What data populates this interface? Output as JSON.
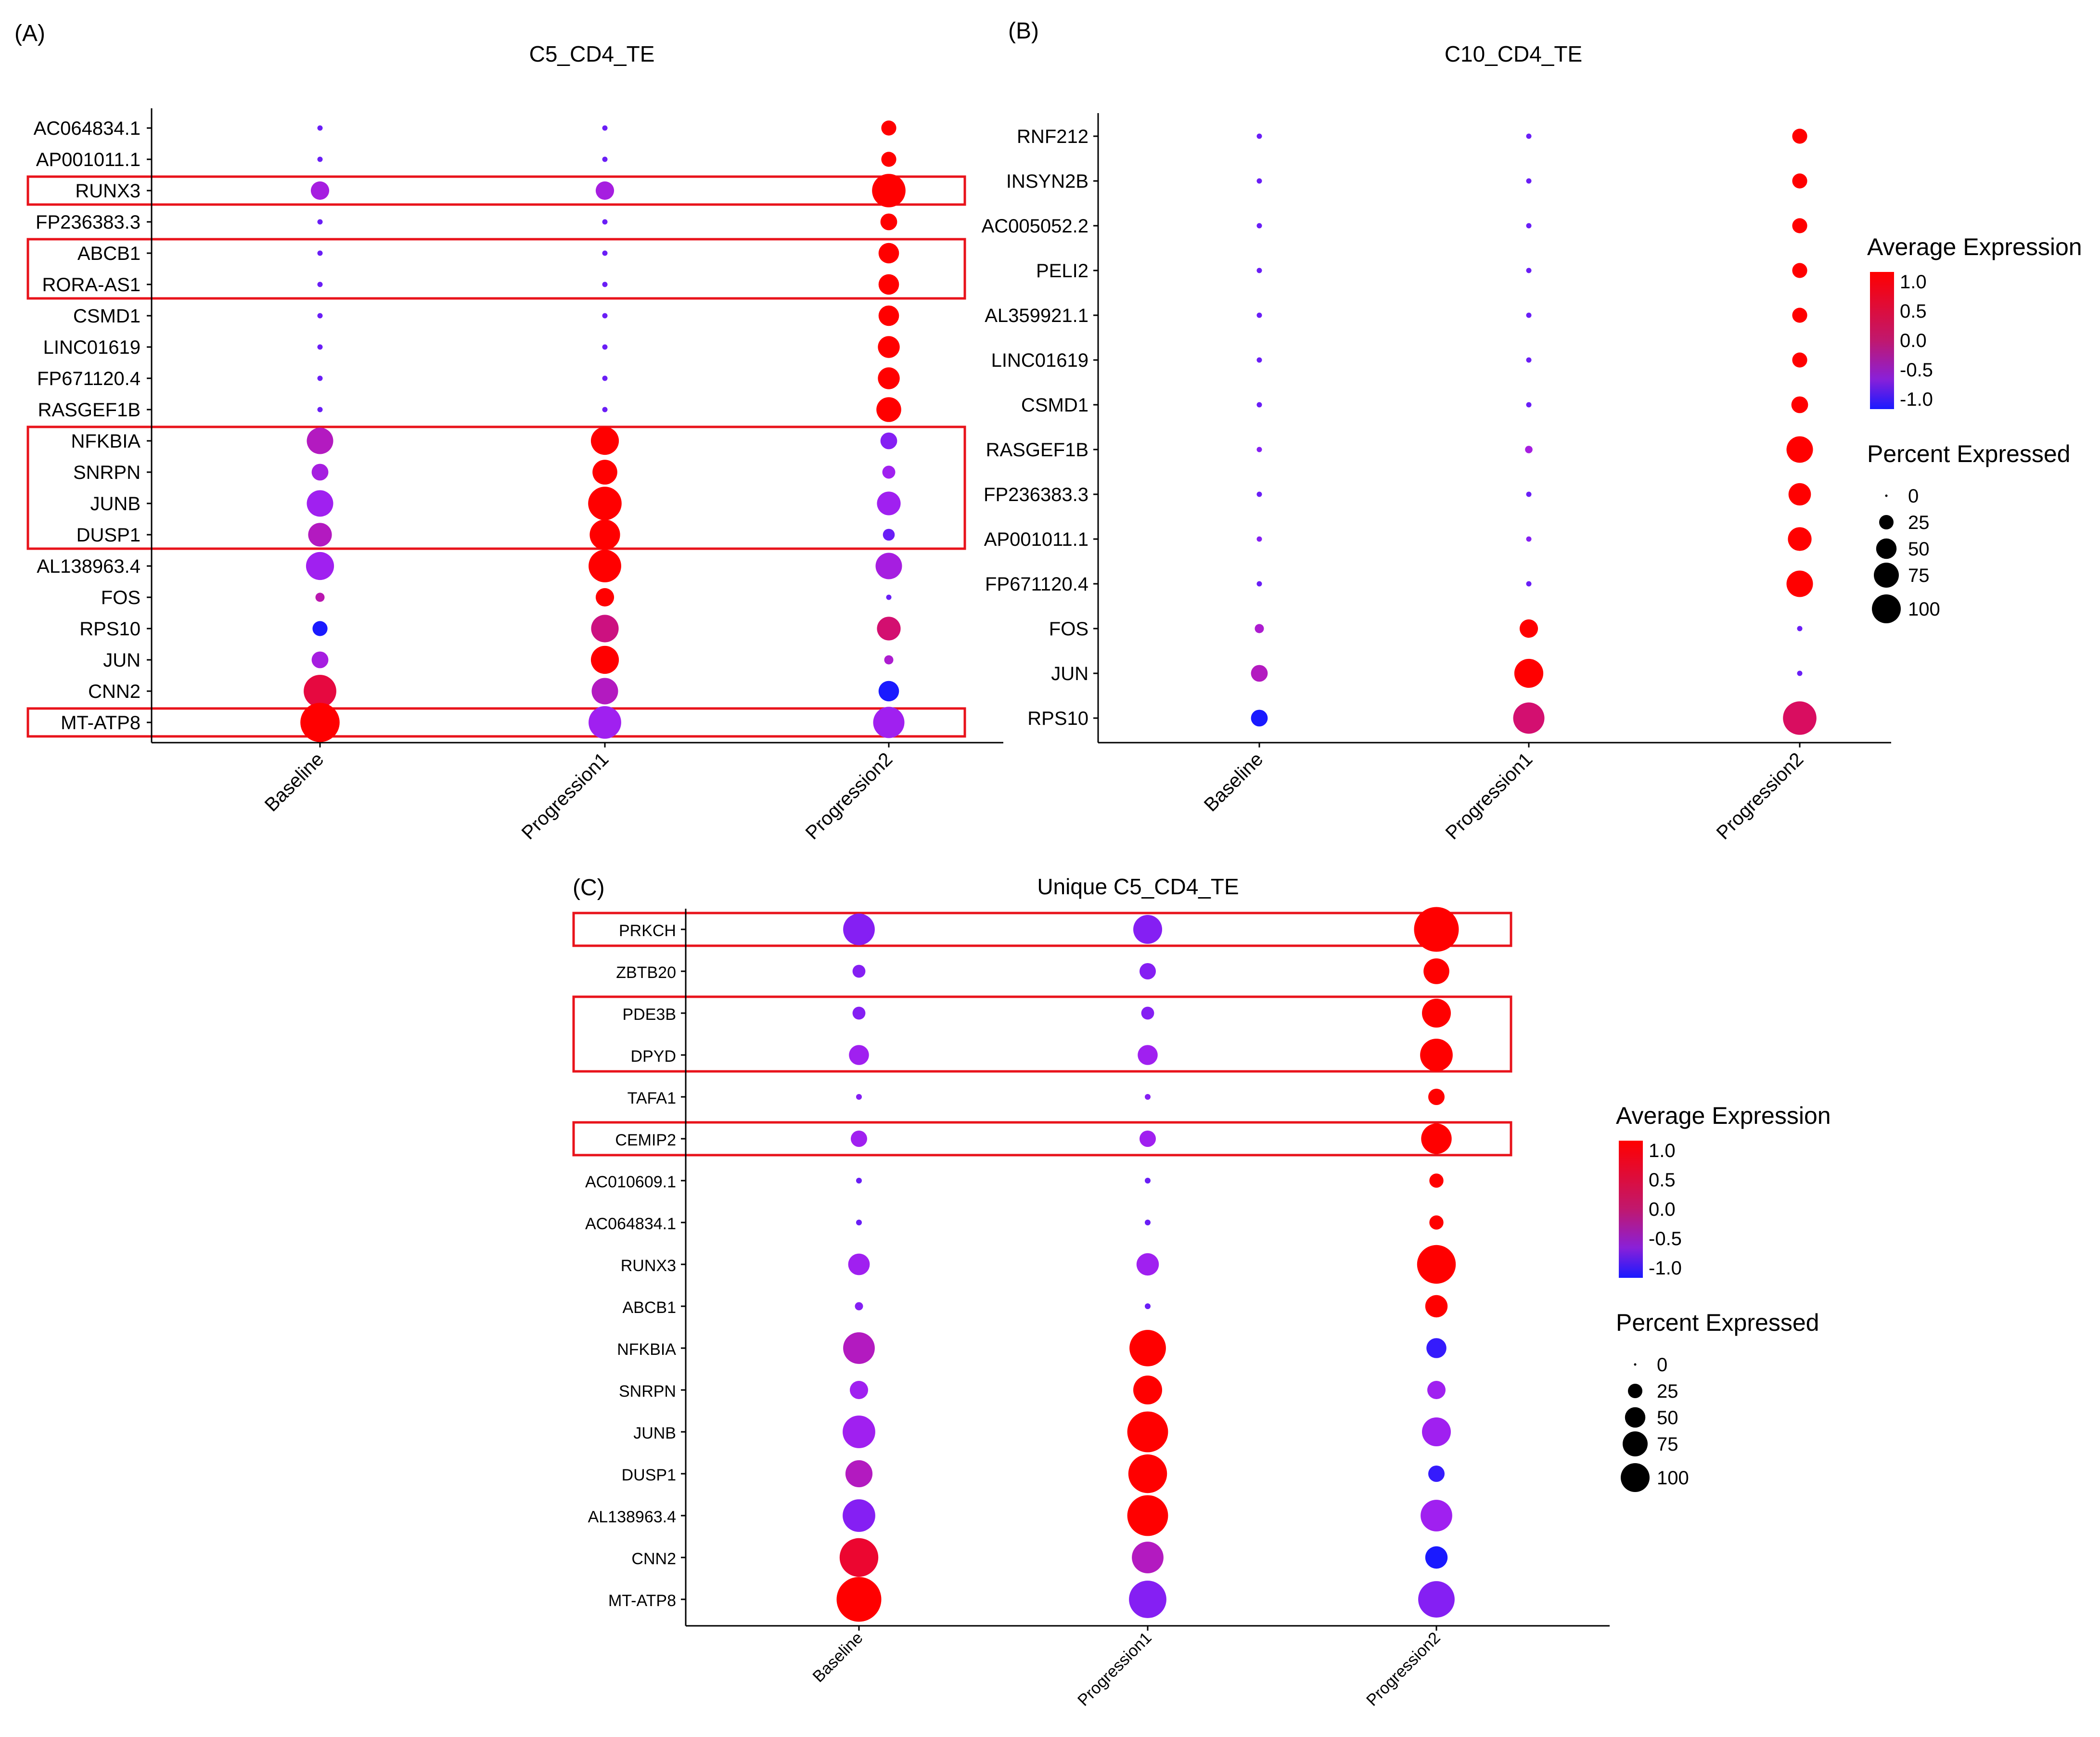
{
  "figure": {
    "colors": {
      "low": "#1a1aff",
      "mid": "#a020f0",
      "high": "#ff0000",
      "axis": "#000000",
      "highlight_box": "#e8131b"
    }
  },
  "chart_data": [
    {
      "panel": "(A)",
      "type": "dotplot",
      "title": "C5_CD4_TE",
      "categories": [
        "Baseline",
        "Progression1",
        "Progression2"
      ],
      "genes": [
        "AC064834.1",
        "AP001011.1",
        "RUNX3",
        "FP236383.3",
        "ABCB1",
        "RORA-AS1",
        "CSMD1",
        "LINC01619",
        "FP671120.4",
        "RASGEF1B",
        "NFKBIA",
        "SNRPN",
        "JUNB",
        "DUSP1",
        "AL138963.4",
        "FOS",
        "RPS10",
        "JUN",
        "CNN2",
        "MT-ATP8"
      ],
      "avg_expression": [
        [
          -0.7,
          -0.7,
          1.1
        ],
        [
          -0.7,
          -0.7,
          1.1
        ],
        [
          -0.4,
          -0.4,
          1.1
        ],
        [
          -0.7,
          -0.7,
          1.1
        ],
        [
          -0.7,
          -0.7,
          1.1
        ],
        [
          -0.7,
          -0.7,
          1.1
        ],
        [
          -0.7,
          -0.7,
          1.1
        ],
        [
          -0.7,
          -0.7,
          1.1
        ],
        [
          -0.7,
          -0.7,
          1.1
        ],
        [
          -0.7,
          -0.7,
          1.1
        ],
        [
          -0.2,
          1.0,
          -0.6
        ],
        [
          -0.4,
          1.0,
          -0.5
        ],
        [
          -0.5,
          1.0,
          -0.5
        ],
        [
          -0.2,
          1.0,
          -0.7
        ],
        [
          -0.5,
          1.0,
          -0.4
        ],
        [
          -0.1,
          1.0,
          -0.7
        ],
        [
          -1.1,
          0.2,
          0.3
        ],
        [
          -0.4,
          1.0,
          -0.3
        ],
        [
          0.6,
          -0.2,
          -1.0
        ],
        [
          1.1,
          -0.5,
          -0.5
        ]
      ],
      "pct_expressed": [
        [
          1,
          1,
          8
        ],
        [
          1,
          1,
          8
        ],
        [
          12,
          12,
          40
        ],
        [
          1,
          1,
          10
        ],
        [
          1,
          1,
          15
        ],
        [
          1,
          1,
          15
        ],
        [
          1,
          1,
          15
        ],
        [
          1,
          1,
          17
        ],
        [
          1,
          1,
          17
        ],
        [
          1,
          1,
          22
        ],
        [
          25,
          28,
          10
        ],
        [
          10,
          22,
          6
        ],
        [
          25,
          40,
          20
        ],
        [
          20,
          33,
          5
        ],
        [
          28,
          38,
          25
        ],
        [
          3,
          12,
          1
        ],
        [
          8,
          27,
          20
        ],
        [
          10,
          28,
          3
        ],
        [
          38,
          25,
          15
        ],
        [
          55,
          38,
          35
        ]
      ],
      "highlighted_genes": [
        [
          "RUNX3"
        ],
        [
          "ABCB1",
          "RORA-AS1"
        ],
        [
          "NFKBIA",
          "SNRPN",
          "JUNB",
          "DUSP1"
        ],
        [
          "MT-ATP8"
        ]
      ]
    },
    {
      "panel": "(B)",
      "type": "dotplot",
      "title": "C10_CD4_TE",
      "categories": [
        "Baseline",
        "Progression1",
        "Progression2"
      ],
      "genes": [
        "RNF212",
        "INSYN2B",
        "AC005052.2",
        "PELI2",
        "AL359921.1",
        "LINC01619",
        "CSMD1",
        "RASGEF1B",
        "FP236383.3",
        "AP001011.1",
        "FP671120.4",
        "FOS",
        "JUN",
        "RPS10"
      ],
      "avg_expression": [
        [
          -0.7,
          -0.7,
          1.1
        ],
        [
          -0.7,
          -0.7,
          1.1
        ],
        [
          -0.7,
          -0.7,
          1.1
        ],
        [
          -0.7,
          -0.7,
          1.1
        ],
        [
          -0.7,
          -0.7,
          1.1
        ],
        [
          -0.7,
          -0.7,
          1.1
        ],
        [
          -0.7,
          -0.7,
          1.1
        ],
        [
          -0.6,
          -0.4,
          1.1
        ],
        [
          -0.7,
          -0.7,
          1.1
        ],
        [
          -0.6,
          -0.6,
          1.1
        ],
        [
          -0.7,
          -0.7,
          1.1
        ],
        [
          -0.3,
          1.1,
          -0.7
        ],
        [
          -0.2,
          1.1,
          -0.7
        ],
        [
          -1.1,
          0.3,
          0.4
        ]
      ],
      "pct_expressed": [
        [
          1,
          1,
          8
        ],
        [
          1,
          1,
          8
        ],
        [
          1,
          1,
          8
        ],
        [
          1,
          1,
          8
        ],
        [
          1,
          1,
          8
        ],
        [
          1,
          1,
          8
        ],
        [
          1,
          1,
          10
        ],
        [
          1,
          2,
          25
        ],
        [
          1,
          1,
          18
        ],
        [
          1,
          1,
          20
        ],
        [
          1,
          1,
          25
        ],
        [
          3,
          12,
          1
        ],
        [
          10,
          30,
          1
        ],
        [
          10,
          35,
          40
        ]
      ]
    },
    {
      "panel": "(C)",
      "type": "dotplot",
      "title": "Unique C5_CD4_TE",
      "categories": [
        "Baseline",
        "Progression1",
        "Progression2"
      ],
      "genes": [
        "PRKCH",
        "ZBTB20",
        "PDE3B",
        "DPYD",
        "TAFA1",
        "CEMIP2",
        "AC010609.1",
        "AC064834.1",
        "RUNX3",
        "ABCB1",
        "NFKBIA",
        "SNRPN",
        "JUNB",
        "DUSP1",
        "AL138963.4",
        "CNN2",
        "MT-ATP8"
      ],
      "avg_expression": [
        [
          -0.6,
          -0.6,
          1.1
        ],
        [
          -0.6,
          -0.6,
          1.1
        ],
        [
          -0.6,
          -0.6,
          1.1
        ],
        [
          -0.5,
          -0.5,
          1.1
        ],
        [
          -0.6,
          -0.6,
          1.1
        ],
        [
          -0.5,
          -0.5,
          1.1
        ],
        [
          -0.7,
          -0.7,
          1.1
        ],
        [
          -0.7,
          -0.7,
          1.1
        ],
        [
          -0.5,
          -0.5,
          1.1
        ],
        [
          -0.6,
          -0.7,
          1.1
        ],
        [
          -0.2,
          1.0,
          -0.9
        ],
        [
          -0.5,
          1.0,
          -0.5
        ],
        [
          -0.5,
          1.0,
          -0.5
        ],
        [
          -0.2,
          1.0,
          -0.9
        ],
        [
          -0.6,
          1.0,
          -0.5
        ],
        [
          0.7,
          -0.2,
          -1.1
        ],
        [
          1.1,
          -0.6,
          -0.6
        ]
      ],
      "pct_expressed": [
        [
          30,
          25,
          60
        ],
        [
          5,
          8,
          20
        ],
        [
          5,
          5,
          25
        ],
        [
          12,
          12,
          32
        ],
        [
          1,
          1,
          8
        ],
        [
          8,
          8,
          28
        ],
        [
          1,
          1,
          6
        ],
        [
          1,
          1,
          6
        ],
        [
          14,
          15,
          45
        ],
        [
          2,
          1,
          15
        ],
        [
          30,
          40,
          12
        ],
        [
          10,
          25,
          10
        ],
        [
          32,
          50,
          25
        ],
        [
          22,
          45,
          8
        ],
        [
          32,
          50,
          30
        ],
        [
          45,
          30,
          15
        ],
        [
          60,
          42,
          40
        ]
      ],
      "highlighted_genes": [
        [
          "PRKCH"
        ],
        [
          "PDE3B",
          "DPYD"
        ],
        [
          "CEMIP2"
        ]
      ]
    }
  ],
  "legends": {
    "avg_title": "Average Expression",
    "avg_ticks": [
      "1.0",
      "0.5",
      "0.0",
      "-0.5",
      "-1.0"
    ],
    "pct_title": "Percent Expressed",
    "pct_ticks": [
      "0",
      "25",
      "50",
      "75",
      "100"
    ]
  }
}
